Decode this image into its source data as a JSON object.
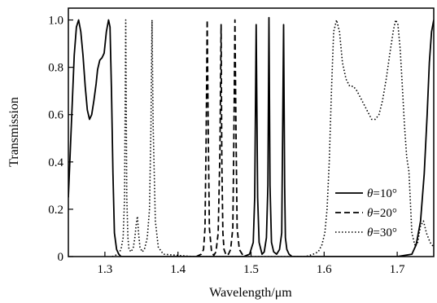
{
  "chart_data": {
    "type": "line",
    "title": "",
    "xlabel": "Wavelength/μm",
    "ylabel": "Transmission",
    "xlim": [
      1.25,
      1.75
    ],
    "ylim": [
      0,
      1.05
    ],
    "xticks": [
      1.3,
      1.4,
      1.5,
      1.6,
      1.7
    ],
    "xtick_labels": [
      "1.3",
      "1.4",
      "1.5",
      "1.6",
      "1.7"
    ],
    "yticks": [
      0,
      0.2,
      0.4,
      0.6,
      0.8,
      1.0
    ],
    "ytick_labels": [
      "0",
      "0.2",
      "0.4",
      "0.6",
      "0.8",
      "1.0"
    ],
    "grid": false,
    "legend_position": "bottom-right",
    "series": [
      {
        "name": "θ=10°",
        "label_symbol": "θ",
        "label_rest": "=10°",
        "style": "solid",
        "x": [
          1.25,
          1.254,
          1.258,
          1.261,
          1.264,
          1.267,
          1.27,
          1.273,
          1.276,
          1.279,
          1.282,
          1.285,
          1.288,
          1.29,
          1.293,
          1.296,
          1.299,
          1.302,
          1.305,
          1.307,
          1.309,
          1.311,
          1.313,
          1.316,
          1.319,
          1.322,
          1.33,
          1.36,
          1.4,
          1.45,
          1.49,
          1.498,
          1.503,
          1.505,
          1.507,
          1.509,
          1.511,
          1.515,
          1.518,
          1.521,
          1.523,
          1.5245,
          1.526,
          1.528,
          1.531,
          1.535,
          1.539,
          1.542,
          1.5445,
          1.546,
          1.547,
          1.549,
          1.552,
          1.556,
          1.57,
          1.6,
          1.65,
          1.7,
          1.72,
          1.726,
          1.732,
          1.737,
          1.741,
          1.744,
          1.747,
          1.75
        ],
        "y": [
          0.25,
          0.55,
          0.85,
          0.97,
          1.0,
          0.95,
          0.85,
          0.72,
          0.62,
          0.58,
          0.6,
          0.66,
          0.73,
          0.79,
          0.83,
          0.84,
          0.86,
          0.95,
          1.0,
          0.97,
          0.7,
          0.35,
          0.1,
          0.03,
          0.01,
          0.0,
          0.0,
          0.0,
          0.0,
          0.0,
          0.0,
          0.01,
          0.06,
          0.25,
          0.98,
          0.25,
          0.06,
          0.01,
          0.02,
          0.08,
          0.3,
          1.01,
          0.3,
          0.06,
          0.02,
          0.01,
          0.03,
          0.1,
          0.98,
          0.3,
          0.08,
          0.03,
          0.01,
          0.0,
          0.0,
          0.0,
          0.0,
          0.0,
          0.01,
          0.05,
          0.15,
          0.35,
          0.6,
          0.82,
          0.95,
          1.0
        ]
      },
      {
        "name": "θ=20°",
        "label_symbol": "θ",
        "label_rest": "=20°",
        "style": "dashed",
        "x": [
          1.425,
          1.432,
          1.435,
          1.437,
          1.4385,
          1.44,
          1.4415,
          1.443,
          1.446,
          1.449,
          1.452,
          1.455,
          1.4575,
          1.459,
          1.46,
          1.4615,
          1.463,
          1.466,
          1.469,
          1.472,
          1.475,
          1.4765,
          1.478,
          1.4795,
          1.481,
          1.484,
          1.49
        ],
        "y": [
          0.0,
          0.01,
          0.03,
          0.12,
          0.5,
          1.0,
          0.5,
          0.12,
          0.02,
          0.005,
          0.02,
          0.1,
          0.45,
          0.98,
          0.4,
          0.1,
          0.03,
          0.005,
          0.01,
          0.03,
          0.12,
          0.5,
          1.0,
          0.5,
          0.12,
          0.03,
          0.0
        ]
      },
      {
        "name": "θ=30°",
        "label_symbol": "θ",
        "label_rest": "=30°",
        "style": "dotted",
        "x": [
          1.31,
          1.318,
          1.322,
          1.325,
          1.327,
          1.3285,
          1.33,
          1.3315,
          1.333,
          1.336,
          1.339,
          1.341,
          1.343,
          1.3445,
          1.346,
          1.348,
          1.351,
          1.354,
          1.358,
          1.361,
          1.363,
          1.3645,
          1.366,
          1.369,
          1.373,
          1.38,
          1.42,
          1.47,
          1.52,
          1.56,
          1.575,
          1.585,
          1.592,
          1.597,
          1.601,
          1.604,
          1.607,
          1.61,
          1.613,
          1.617,
          1.621,
          1.625,
          1.63,
          1.635,
          1.64,
          1.645,
          1.65,
          1.655,
          1.66,
          1.665,
          1.67,
          1.675,
          1.68,
          1.685,
          1.69,
          1.695,
          1.698,
          1.701,
          1.704,
          1.707,
          1.71,
          1.713,
          1.716,
          1.72,
          1.724,
          1.728,
          1.732,
          1.736,
          1.74,
          1.745,
          1.75
        ],
        "y": [
          0.0,
          0.01,
          0.03,
          0.08,
          0.25,
          1.0,
          0.25,
          0.08,
          0.03,
          0.02,
          0.04,
          0.08,
          0.14,
          0.17,
          0.1,
          0.04,
          0.02,
          0.03,
          0.08,
          0.2,
          0.55,
          1.0,
          0.55,
          0.15,
          0.04,
          0.01,
          0.0,
          0.0,
          0.0,
          0.0,
          0.0,
          0.01,
          0.02,
          0.05,
          0.1,
          0.2,
          0.4,
          0.7,
          0.95,
          1.0,
          0.95,
          0.82,
          0.75,
          0.72,
          0.72,
          0.7,
          0.67,
          0.64,
          0.61,
          0.58,
          0.58,
          0.6,
          0.66,
          0.75,
          0.86,
          0.96,
          1.0,
          0.98,
          0.88,
          0.72,
          0.55,
          0.42,
          0.36,
          0.1,
          0.05,
          0.06,
          0.13,
          0.15,
          0.1,
          0.06,
          0.04
        ]
      }
    ]
  }
}
